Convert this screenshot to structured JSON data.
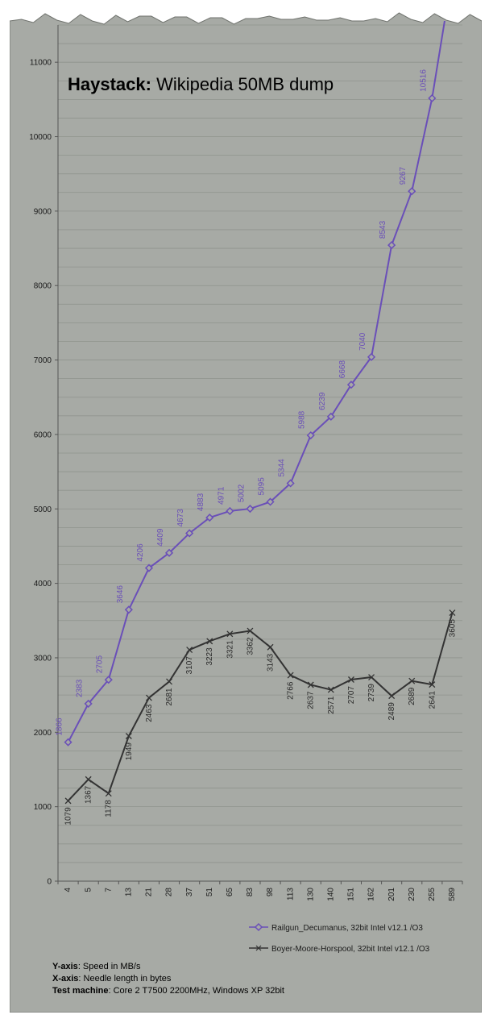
{
  "title": {
    "bold": "Haystack:",
    "rest": " Wikipedia 50MB dump"
  },
  "chart_data": {
    "type": "line",
    "categories": [
      "4",
      "5",
      "7",
      "13",
      "21",
      "28",
      "37",
      "51",
      "65",
      "83",
      "98",
      "113",
      "130",
      "140",
      "151",
      "162",
      "201",
      "230",
      "255",
      "589"
    ],
    "series": [
      {
        "name": "Railgun_Decumanus, 32bit Intel v12.1 /O3",
        "color": "#6a4fb8",
        "values": [
          1866,
          2383,
          2705,
          3646,
          4206,
          4409,
          4673,
          4883,
          4971,
          5002,
          5095,
          5344,
          5988,
          6239,
          6668,
          7040,
          8543,
          9267,
          10516,
          null
        ],
        "labels": [
          "1866",
          "2383",
          "2705",
          "3646",
          "4206",
          "4409",
          "4673",
          "4883",
          "4971",
          "5002",
          "5095",
          "5344",
          "5988",
          "6239",
          "6668",
          "7040",
          "8543",
          "9267",
          "10516",
          ""
        ]
      },
      {
        "name": "Boyer-Moore-Horspool, 32bit Intel v12.1 /O3",
        "color": "#333333",
        "values": [
          1079,
          1367,
          1178,
          1949,
          2463,
          2681,
          3107,
          3223,
          3321,
          3362,
          3143,
          2766,
          2637,
          2571,
          2707,
          2739,
          2489,
          2689,
          2641,
          3605
        ],
        "labels": [
          "1079",
          "1367",
          "1178",
          "1949",
          "2463",
          "2681",
          "3107",
          "3223",
          "3321",
          "3362",
          "3143",
          "2766",
          "2637",
          "2571",
          "2707",
          "2739",
          "2489",
          "2689",
          "2641",
          "3605"
        ]
      }
    ],
    "ylim": [
      0,
      11500
    ],
    "yticks": [
      0,
      1000,
      2000,
      3000,
      4000,
      5000,
      6000,
      7000,
      8000,
      9000,
      10000,
      11000
    ],
    "grid": true,
    "legend_position": "bottom-right"
  },
  "notes": [
    {
      "label": "Y-axis",
      "text": ": Speed in MB/s"
    },
    {
      "label": "X-axis",
      "text": ": Needle length in bytes"
    },
    {
      "label": "Test machine",
      "text": ": Core 2 T7500 2200MHz, Windows XP 32bit"
    }
  ],
  "colors": {
    "background": "#a7aaa5",
    "grid": "#8f938d"
  }
}
